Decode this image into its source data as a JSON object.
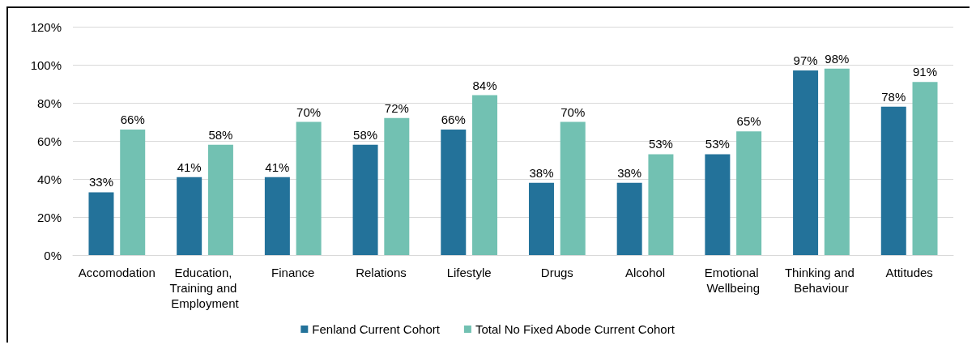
{
  "chart_data": {
    "type": "bar",
    "categories": [
      "Accomodation",
      "Education, Training and Employment",
      "Finance",
      "Relations",
      "Lifestyle",
      "Drugs",
      "Alcohol",
      "Emotional Wellbeing",
      "Thinking and Behaviour",
      "Attitudes"
    ],
    "series": [
      {
        "name": "Fenland Current Cohort",
        "color": "#23729a",
        "values": [
          33,
          41,
          41,
          58,
          66,
          38,
          38,
          53,
          97,
          78
        ],
        "value_labels": [
          "33%",
          "41%",
          "41%",
          "58%",
          "66%",
          "38%",
          "38%",
          "53%",
          "97%",
          "78%"
        ]
      },
      {
        "name": "Total No Fixed Abode Current Cohort",
        "color": "#72c1b2",
        "values": [
          66,
          58,
          70,
          72,
          84,
          70,
          53,
          65,
          98,
          91
        ],
        "value_labels": [
          "66%",
          "58%",
          "70%",
          "72%",
          "84%",
          "70%",
          "53%",
          "65%",
          "98%",
          "91%"
        ]
      }
    ],
    "ylim": [
      0,
      120
    ],
    "yticks": [
      {
        "value": 0,
        "label": "0%"
      },
      {
        "value": 20,
        "label": "20%"
      },
      {
        "value": 40,
        "label": "40%"
      },
      {
        "value": 60,
        "label": "60%"
      },
      {
        "value": 80,
        "label": "80%"
      },
      {
        "value": 100,
        "label": "100%"
      },
      {
        "value": 120,
        "label": "120%"
      }
    ],
    "grid": "y",
    "legend": "bottom"
  }
}
